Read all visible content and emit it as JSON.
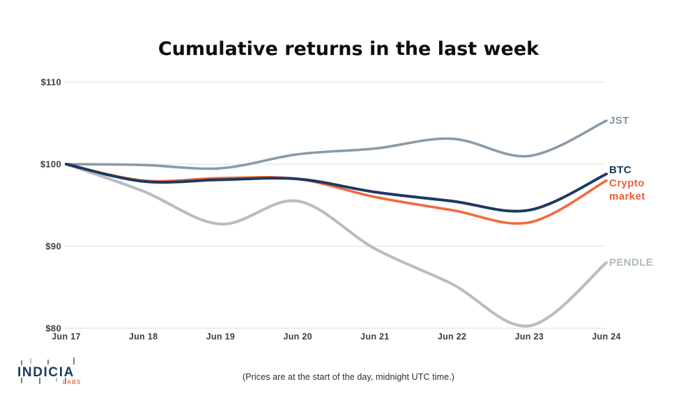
{
  "title": "Cumulative returns in the last week",
  "footnote": "(Prices are at the start of the day, midnight UTC time.)",
  "logo": {
    "brand": "INDICIA",
    "sub": "LABS"
  },
  "colors": {
    "background": "#FFFFFF",
    "grid": "#DCDEDF",
    "axis_text": "#3D3D3D",
    "title_text": "#0D0D0D",
    "navy": "#1D3A5F",
    "orange": "#F2693C",
    "slate": "#8A9AA8",
    "light_gray": "#B6BEC4",
    "logo_orange": "#F3753F"
  },
  "chart_data": {
    "type": "line",
    "title": "Cumulative returns in the last week",
    "xlabel": "",
    "ylabel": "",
    "x": [
      "Jun 17",
      "Jun 18",
      "Jun 19",
      "Jun 20",
      "Jun 21",
      "Jun 22",
      "Jun 23",
      "Jun 24"
    ],
    "y_ticks": [
      {
        "label": "$110",
        "value": 110
      },
      {
        "label": "$100",
        "value": 100
      },
      {
        "label": "$90",
        "value": 90
      },
      {
        "label": "$80",
        "value": 80
      }
    ],
    "ylim": [
      80,
      110
    ],
    "grid": "horizontal-only",
    "legend_position": "right-of-line-ends",
    "series": [
      {
        "name": "JST",
        "label": "JST",
        "color": "#8A9AA8",
        "label_color": "#8294A3",
        "values": [
          100,
          99.9,
          99.5,
          101.2,
          101.9,
          103.1,
          101.0,
          105.3
        ]
      },
      {
        "name": "BTC",
        "label": "BTC",
        "color": "#1D3A5F",
        "label_color": "#17375B",
        "values": [
          100,
          97.9,
          98.1,
          98.2,
          96.6,
          95.5,
          94.4,
          98.8
        ]
      },
      {
        "name": "Crypto market",
        "label": "Crypto market",
        "color": "#F2693C",
        "label_color": "#EE5F33",
        "values": [
          100,
          98.0,
          98.3,
          98.2,
          96.0,
          94.4,
          92.9,
          98.0
        ]
      },
      {
        "name": "PENDLE",
        "label": "PENDLE",
        "color": "#B6BEC4",
        "label_color": "#AFBAC1",
        "values": [
          100,
          96.7,
          92.7,
          95.5,
          89.7,
          85.4,
          80.3,
          88.0
        ]
      }
    ]
  }
}
